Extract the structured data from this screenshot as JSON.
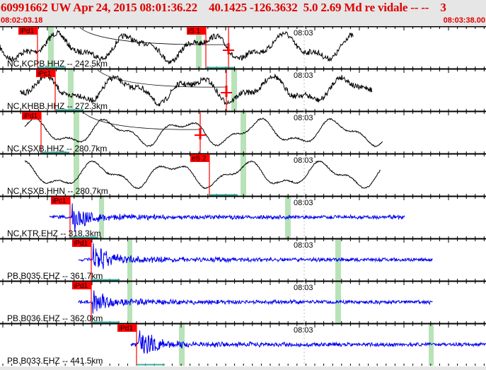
{
  "header": {
    "title": "60991662 UW Apr 24, 2015 08:01:36.22    40.1425 -126.3632  5.0 2.69 Md re vidale -- --    3",
    "start_time": "08:02:03.18",
    "end_time": "08:03:38.00"
  },
  "colors": {
    "header_text": "#e00000",
    "pick": "#ff0000",
    "band": "#b8e2b8",
    "trace_broadband": "#000000",
    "trace_short_period": "#0000ee"
  },
  "time_tick_label": "08:03",
  "panels": [
    {
      "station": "NC.KCPB.HHZ -- 242.5km",
      "color": "black",
      "picks": [
        "iPd1",
        "iS 1"
      ]
    },
    {
      "station": "NC.KHBB.HHZ -- 272.3km",
      "color": "black",
      "picks": [
        "iPc1"
      ]
    },
    {
      "station": "NC.KSXB.HHZ -- 280.7km",
      "color": "black",
      "picks": [
        "iPd1"
      ]
    },
    {
      "station": "NC.KSXB.HHN -- 280.7km",
      "color": "black",
      "picks": [
        "eS 2"
      ]
    },
    {
      "station": "NC.KTR.EHZ -- 318.3km",
      "color": "blue",
      "picks": [
        "iPc1"
      ]
    },
    {
      "station": "PB.B035.EHZ -- 361.7km",
      "color": "blue",
      "picks": [
        "iPd1"
      ]
    },
    {
      "station": "PB.B036.EHZ -- 362.0km",
      "color": "blue",
      "picks": [
        "iPd1"
      ]
    },
    {
      "station": "PB.B033.EHZ -- 441.5km",
      "color": "blue",
      "picks": [
        "iPd1"
      ]
    }
  ]
}
